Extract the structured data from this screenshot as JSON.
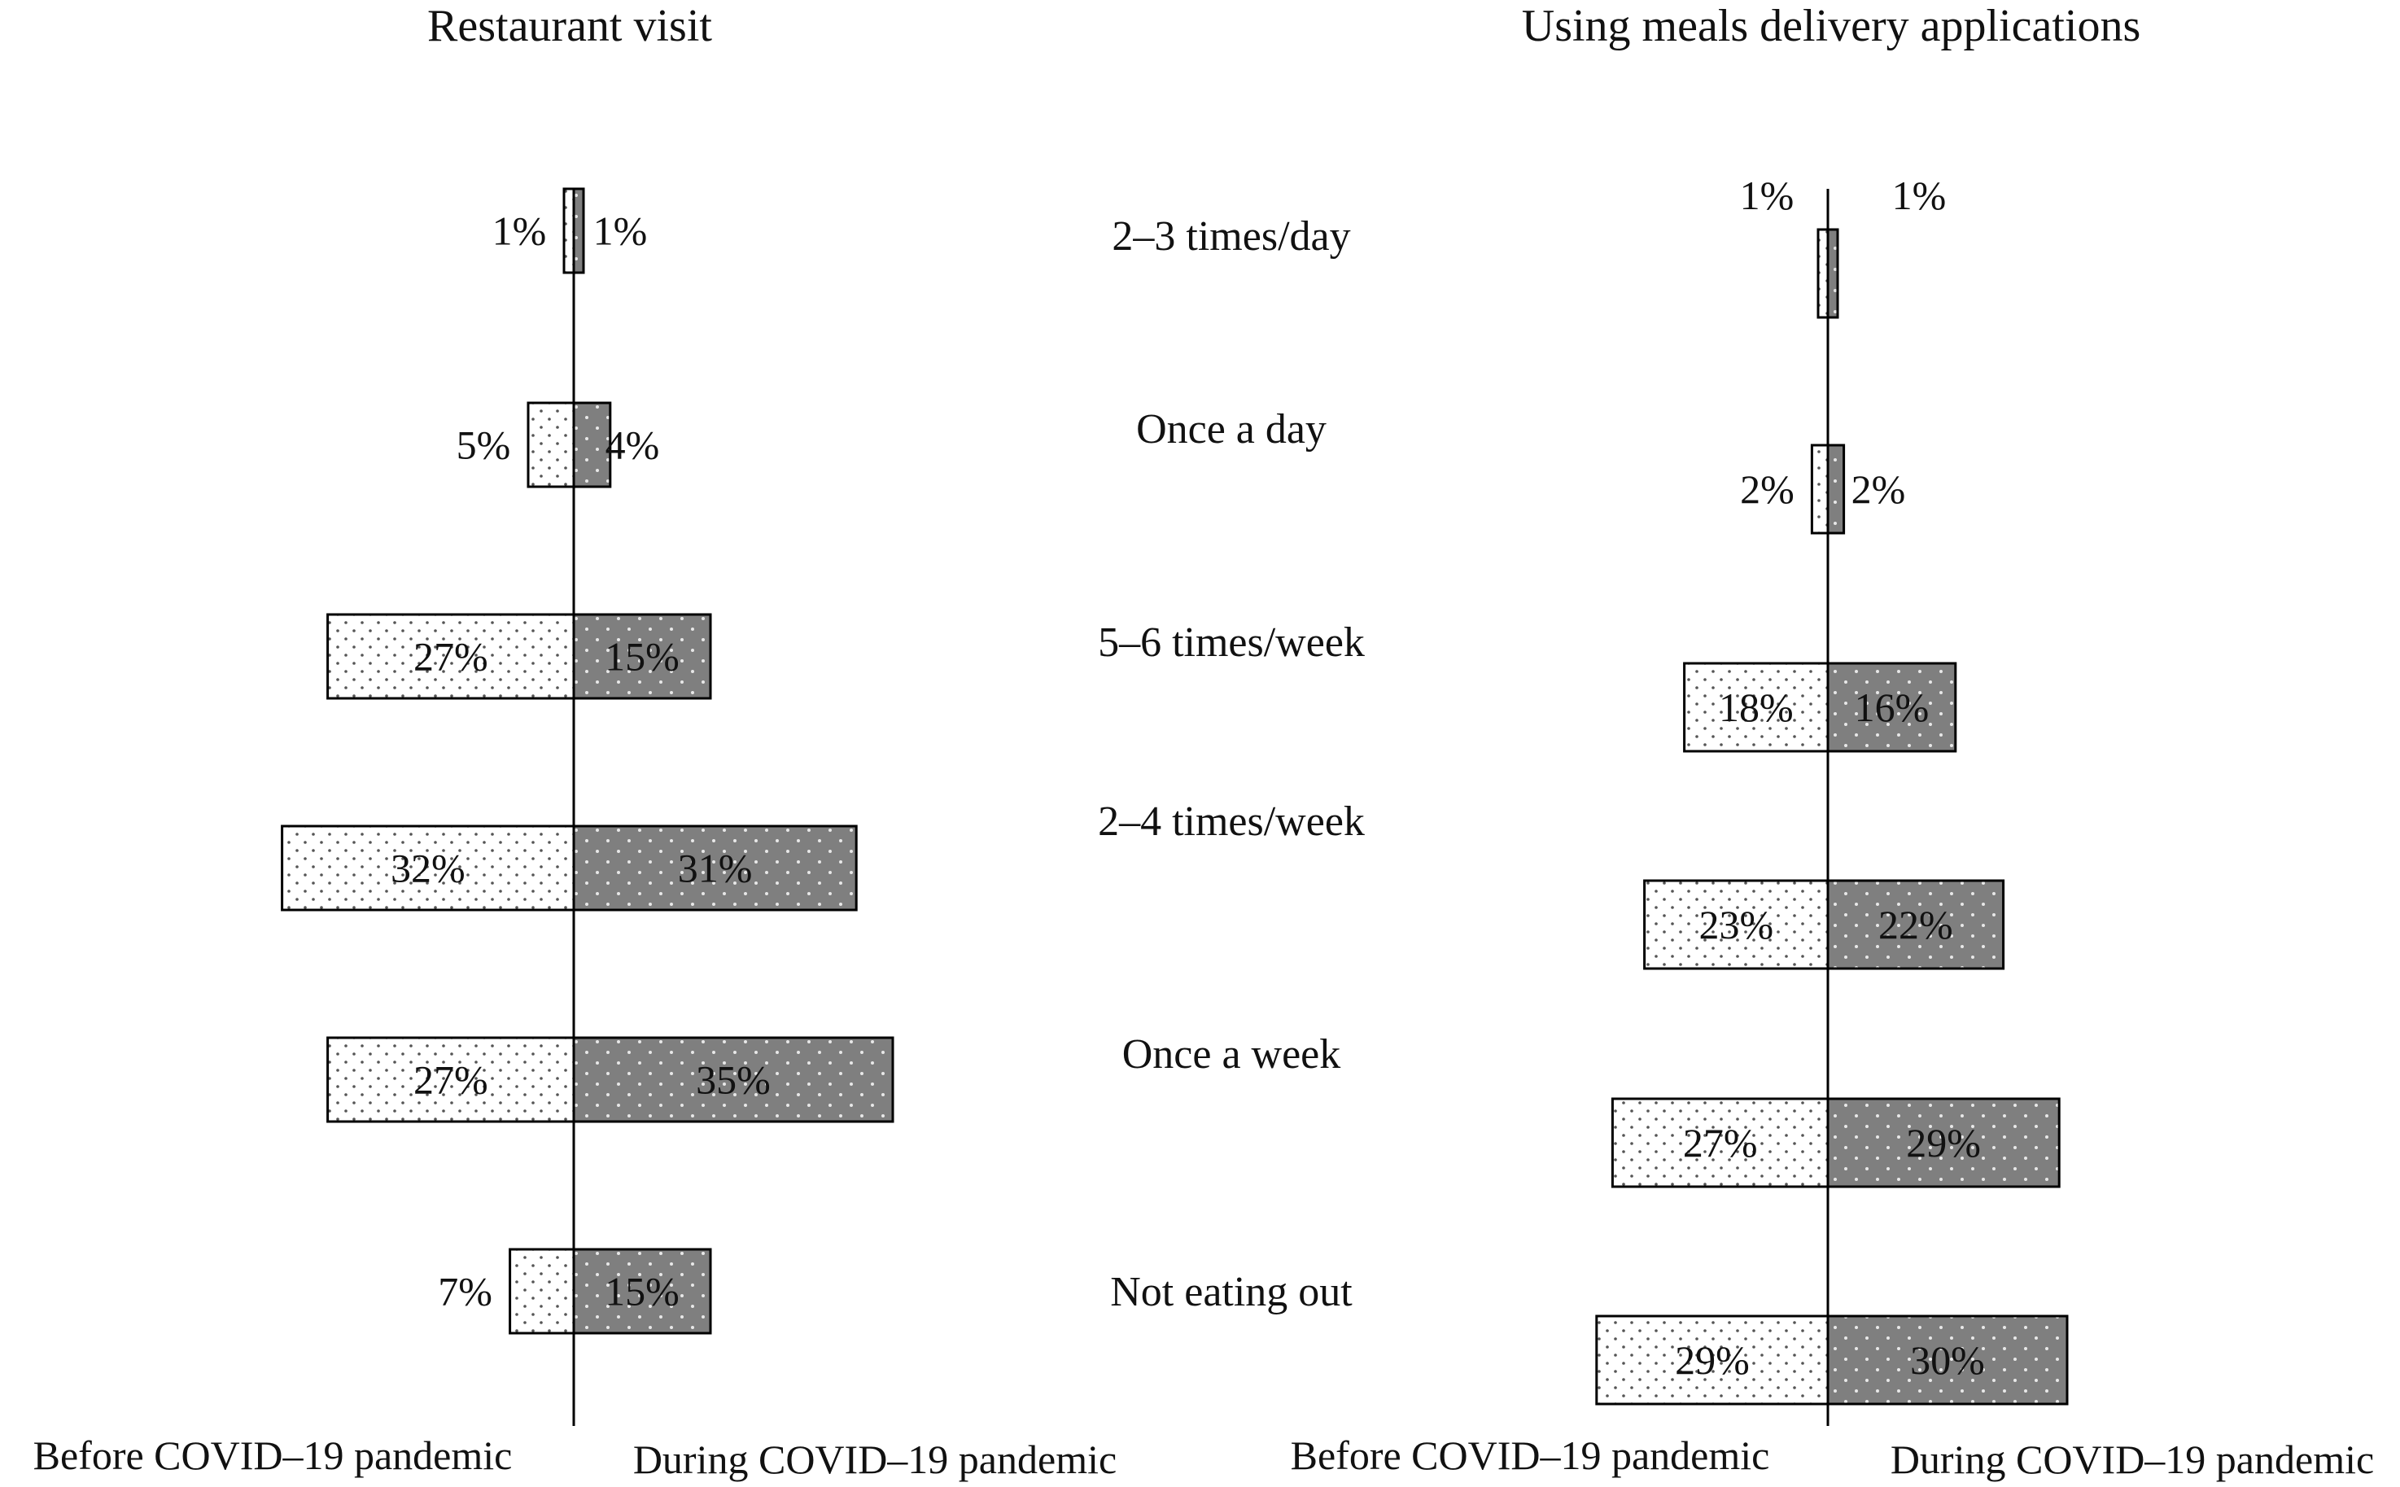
{
  "chart_data": [
    {
      "type": "bar",
      "orientation": "diverging-horizontal",
      "title": "Restaurant visit",
      "categories": [
        "2–3 times/day",
        "Once a day",
        "5–6 times/week",
        "2–4 times/week",
        "Once a week",
        "Not eating out"
      ],
      "series": [
        {
          "name": "Before COVID–19 pandemic",
          "values": [
            1,
            5,
            27,
            32,
            27,
            7
          ],
          "labels": [
            "1%",
            "5%",
            "27%",
            "32%",
            "27%",
            "7%"
          ]
        },
        {
          "name": "During COVID–19 pandemic",
          "values": [
            1,
            4,
            15,
            31,
            35,
            15
          ],
          "labels": [
            "1%",
            "4%",
            "15%",
            "31%",
            "35%",
            "15%"
          ]
        }
      ],
      "unit": "%"
    },
    {
      "type": "bar",
      "orientation": "diverging-horizontal",
      "title": "Using meals delivery applications",
      "categories": [
        "2–3 times/day",
        "Once a day",
        "5–6 times/week",
        "2–4 times/week",
        "Once a week",
        "Not eating out"
      ],
      "series": [
        {
          "name": "Before COVID–19 pandemic",
          "values": [
            1,
            2,
            18,
            23,
            27,
            29
          ],
          "labels": [
            "1%",
            "2%",
            "18%",
            "23%",
            "27%",
            "29%"
          ]
        },
        {
          "name": "During COVID–19 pandemic",
          "values": [
            1,
            2,
            16,
            22,
            29,
            30
          ],
          "labels": [
            "1%",
            "2%",
            "16%",
            "22%",
            "29%",
            "30%"
          ]
        }
      ],
      "unit": "%"
    }
  ],
  "colors": {
    "before_fill": "#ffffff",
    "during_fill": "#7f7f7f",
    "outline": "#000000"
  }
}
